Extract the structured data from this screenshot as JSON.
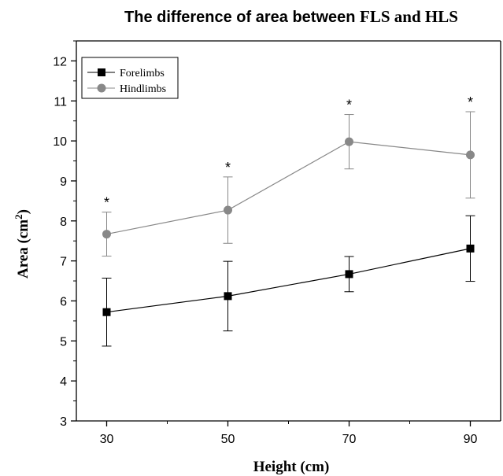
{
  "chart_data": {
    "type": "line",
    "title": "The difference of area between FLS and HLS",
    "title_parts": {
      "prefix": "The difference of area between ",
      "emphasis": "FLS and HLS"
    },
    "xlabel": "Height (cm)",
    "ylabel": "Area (cm",
    "ylabel_superscript": "2",
    "ylabel_close": ")",
    "x": [
      30,
      50,
      70,
      90
    ],
    "x_ticks": [
      "30",
      "50",
      "70",
      "90"
    ],
    "xlim": [
      25,
      95
    ],
    "ylim": [
      3,
      12.5
    ],
    "y_ticks": [
      "3",
      "4",
      "5",
      "6",
      "7",
      "8",
      "9",
      "10",
      "11",
      "12"
    ],
    "grid": false,
    "legend_position": "top-left",
    "series": [
      {
        "name": "Forelimbs",
        "color": "#000000",
        "marker": "square",
        "values": [
          5.72,
          6.12,
          6.67,
          7.31
        ],
        "error": [
          0.85,
          0.87,
          0.44,
          0.82
        ]
      },
      {
        "name": "Hindlimbs",
        "color": "#888888",
        "marker": "circle",
        "values": [
          7.67,
          8.27,
          9.98,
          9.65
        ],
        "error": [
          0.55,
          0.83,
          0.68,
          1.08
        ]
      }
    ],
    "annotations": [
      "*",
      "*",
      "*",
      "*"
    ]
  }
}
